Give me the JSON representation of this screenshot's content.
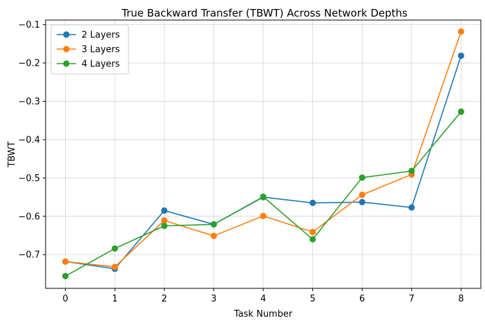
{
  "chart_data": {
    "type": "line",
    "title": "True Backward Transfer (TBWT) Across Network Depths",
    "xlabel": "Task Number",
    "ylabel": "TBWT",
    "x": [
      0,
      1,
      2,
      3,
      4,
      5,
      6,
      7,
      8
    ],
    "xlim": [
      -0.4,
      8.4
    ],
    "ylim": [
      -0.788,
      -0.088
    ],
    "xticks": [
      "0",
      "1",
      "2",
      "3",
      "4",
      "5",
      "6",
      "7",
      "8"
    ],
    "yticks": [
      -0.7,
      -0.6,
      -0.5,
      -0.4,
      -0.3,
      -0.2,
      -0.1
    ],
    "ytick_labels": [
      "−0.7",
      "−0.6",
      "−0.5",
      "−0.4",
      "−0.3",
      "−0.2",
      "−0.1"
    ],
    "grid": true,
    "legend_position": "top-left",
    "series": [
      {
        "name": "2 Layers",
        "color": "#1f77b4",
        "values": [
          -0.718,
          -0.737,
          -0.585,
          -0.621,
          -0.55,
          -0.565,
          -0.563,
          -0.577,
          -0.181
        ]
      },
      {
        "name": "3 Layers",
        "color": "#ff7f0e",
        "values": [
          -0.718,
          -0.732,
          -0.611,
          -0.651,
          -0.599,
          -0.641,
          -0.544,
          -0.491,
          -0.118
        ]
      },
      {
        "name": "4 Layers",
        "color": "#2ca02c",
        "values": [
          -0.756,
          -0.684,
          -0.625,
          -0.621,
          -0.549,
          -0.66,
          -0.499,
          -0.482,
          -0.327
        ]
      }
    ]
  }
}
